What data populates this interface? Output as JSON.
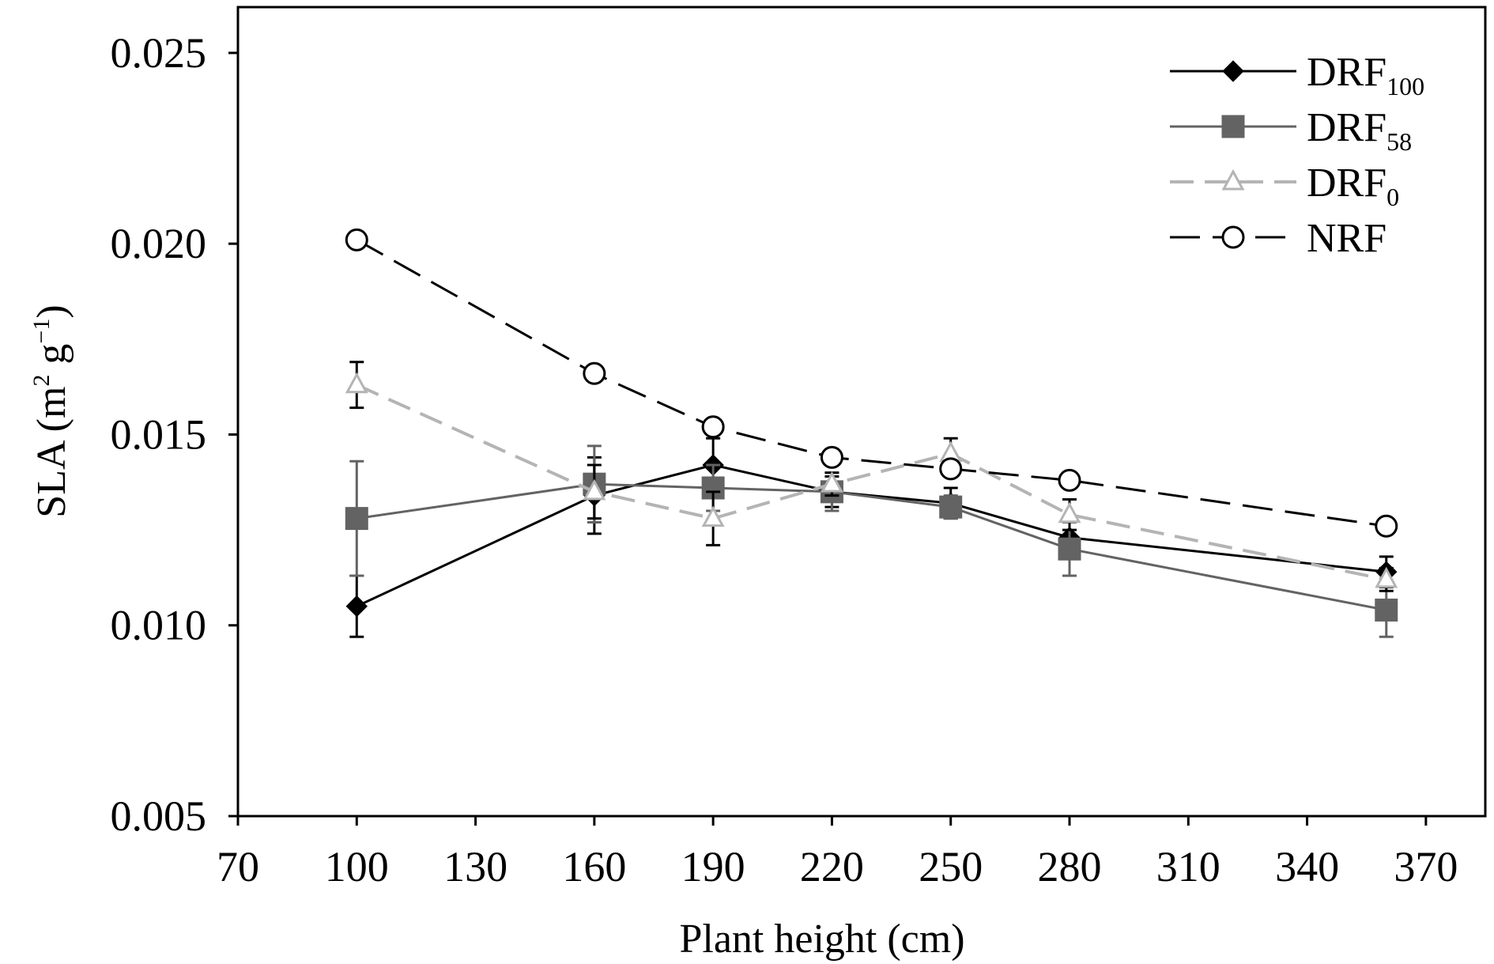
{
  "chart_data": {
    "type": "line",
    "title": "",
    "xlabel": "Plant  height (cm)",
    "ylabel": "SLA (m² g⁻¹)",
    "ylabel_parts": {
      "main": "SLA (m",
      "sup1": "2",
      "mid": " g",
      "sup2": "−1",
      "end": ")"
    },
    "xlim": [
      70,
      385
    ],
    "ylim": [
      0.005,
      0.0262
    ],
    "xticks": [
      70,
      100,
      130,
      160,
      190,
      220,
      250,
      280,
      310,
      340,
      370
    ],
    "xtick_labels": [
      "70",
      "100",
      "130",
      "160",
      "190",
      "220",
      "250",
      "280",
      "310",
      "340",
      "370"
    ],
    "yticks": [
      0.005,
      0.01,
      0.015,
      0.02,
      0.025
    ],
    "ytick_labels": [
      "0.005",
      "0.010",
      "0.015",
      "0.020",
      "0.025"
    ],
    "grid": false,
    "legend_position": "top-right",
    "x": [
      100,
      160,
      190,
      220,
      250,
      280,
      360
    ],
    "series": [
      {
        "name": "DRF100",
        "label_main": "DRF",
        "label_sub": "100",
        "color": "#000000",
        "marker": "diamond",
        "dash": "solid",
        "values": [
          0.0105,
          0.0134,
          0.0142,
          0.0135,
          0.0132,
          0.0123,
          0.0114
        ],
        "errors": [
          0.0008,
          0.001,
          0.0007,
          0.0004,
          0.0004,
          0.0004,
          0.0004
        ]
      },
      {
        "name": "DRF58",
        "label_main": "DRF",
        "label_sub": "58",
        "color": "#636363",
        "marker": "square",
        "dash": "solid",
        "values": [
          0.0128,
          0.0137,
          0.0136,
          0.0135,
          0.0131,
          0.012,
          0.0104
        ],
        "errors": [
          0.0015,
          0.001,
          0.0006,
          0.0005,
          0.0003,
          0.0007,
          0.0007
        ]
      },
      {
        "name": "DRF0",
        "label_main": "DRF",
        "label_sub": "0",
        "color": "#b4b4b4",
        "marker": "triangle-open",
        "dash": "dashed",
        "values": [
          0.0163,
          0.0135,
          0.0128,
          0.0137,
          0.0145,
          0.0129,
          0.0112
        ],
        "errors": [
          0.0006,
          0.0007,
          0.0007,
          0.0003,
          0.0004,
          0.0004,
          0.0003
        ]
      },
      {
        "name": "NRF",
        "label_main": "NRF",
        "label_sub": "",
        "color": "#000000",
        "marker": "circle-open",
        "dash": "long-dashed",
        "values": [
          0.0201,
          0.0166,
          0.0152,
          0.0144,
          0.0141,
          0.0138,
          0.0126
        ],
        "errors": [
          0,
          0,
          0,
          0,
          0,
          0,
          0
        ]
      }
    ]
  }
}
